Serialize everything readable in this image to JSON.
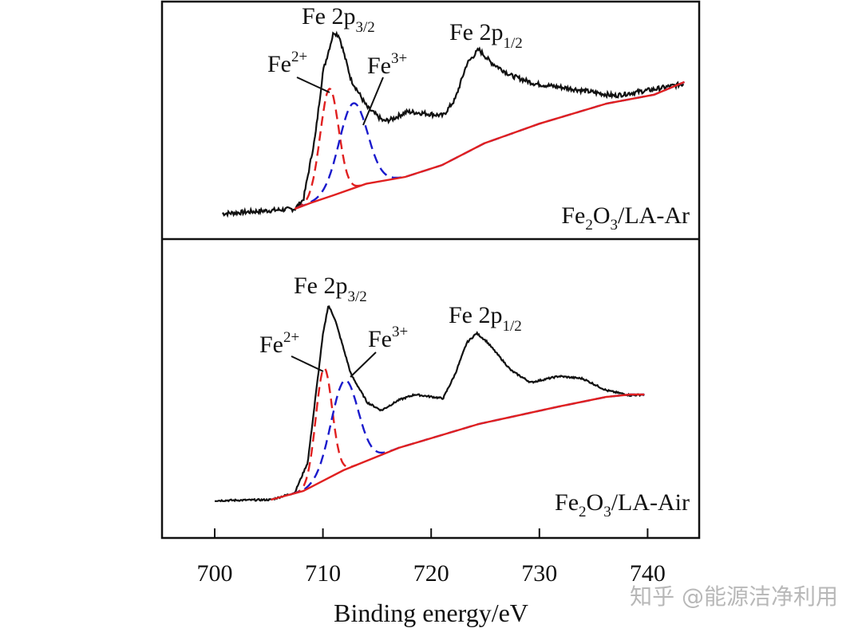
{
  "chart_data": {
    "type": "line",
    "xlabel": "Binding energy/eV",
    "xlim": [
      695,
      745
    ],
    "xticks": [
      700,
      710,
      720,
      730,
      740
    ],
    "ylabel": "",
    "y_units": "normalized intensity (arb.)",
    "colors": {
      "raw": "#111111",
      "fe2": "#e02020",
      "fe3": "#1a1acc",
      "baseline": "#e02020"
    },
    "panels": [
      {
        "sample": {
          "main": "Fe",
          "s1": "2",
          "mid": "O",
          "s2": "3",
          "rest": "/LA-Ar"
        },
        "peak_32": {
          "text": "Fe 2p",
          "sub": "3/2"
        },
        "peak_12": {
          "text": "Fe 2p",
          "sub": "1/2"
        },
        "fe2_label": {
          "text": "Fe",
          "sup": "2+"
        },
        "fe3_label": {
          "text": "Fe",
          "sup": "3+"
        },
        "raw": [
          [
            700.7,
            0.046
          ],
          [
            707.4,
            0.069
          ],
          [
            708.2,
            0.115
          ],
          [
            709.3,
            0.423
          ],
          [
            710.0,
            0.731
          ],
          [
            711.0,
            0.923
          ],
          [
            711.5,
            0.904
          ],
          [
            712.6,
            0.692
          ],
          [
            714.1,
            0.558
          ],
          [
            715.6,
            0.492
          ],
          [
            716.3,
            0.5
          ],
          [
            717.8,
            0.538
          ],
          [
            719.2,
            0.531
          ],
          [
            721.1,
            0.519
          ],
          [
            722.2,
            0.596
          ],
          [
            723.3,
            0.769
          ],
          [
            724.4,
            0.838
          ],
          [
            725.5,
            0.777
          ],
          [
            727.4,
            0.712
          ],
          [
            729.6,
            0.673
          ],
          [
            733.3,
            0.646
          ],
          [
            736.9,
            0.615
          ],
          [
            740.6,
            0.646
          ],
          [
            743.4,
            0.673
          ]
        ],
        "baseline": [
          [
            707.4,
            0.069
          ],
          [
            709.0,
            0.1
          ],
          [
            711.0,
            0.135
          ],
          [
            714.0,
            0.19
          ],
          [
            717.6,
            0.223
          ],
          [
            721.0,
            0.28
          ],
          [
            724.9,
            0.385
          ],
          [
            730.0,
            0.48
          ],
          [
            736.2,
            0.577
          ],
          [
            740.6,
            0.62
          ],
          [
            743.4,
            0.681
          ]
        ],
        "components": [
          {
            "name": "Fe2+",
            "center": 710.6,
            "height": 0.52,
            "sigma": 0.85
          },
          {
            "name": "Fe3+",
            "center": 712.8,
            "height": 0.41,
            "sigma": 1.3
          }
        ]
      },
      {
        "sample": {
          "main": "Fe",
          "s1": "2",
          "mid": "O",
          "s2": "3",
          "rest": "/LA-Air"
        },
        "peak_32": {
          "text": "Fe 2p",
          "sub": "3/2"
        },
        "peak_12": {
          "text": "Fe 2p",
          "sub": "1/2"
        },
        "fe2_label": {
          "text": "Fe",
          "sup": "2+"
        },
        "fe3_label": {
          "text": "Fe",
          "sup": "3+"
        },
        "raw": [
          [
            700.0,
            0.044
          ],
          [
            705.2,
            0.048
          ],
          [
            707.4,
            0.081
          ],
          [
            708.6,
            0.222
          ],
          [
            709.3,
            0.519
          ],
          [
            710.0,
            0.815
          ],
          [
            710.5,
            0.952
          ],
          [
            711.1,
            0.889
          ],
          [
            712.6,
            0.63
          ],
          [
            714.1,
            0.5
          ],
          [
            715.4,
            0.463
          ],
          [
            717.0,
            0.511
          ],
          [
            718.5,
            0.537
          ],
          [
            721.1,
            0.519
          ],
          [
            722.2,
            0.63
          ],
          [
            723.3,
            0.778
          ],
          [
            724.2,
            0.822
          ],
          [
            725.1,
            0.785
          ],
          [
            727.4,
            0.648
          ],
          [
            729.2,
            0.593
          ],
          [
            731.8,
            0.622
          ],
          [
            734.0,
            0.611
          ],
          [
            736.2,
            0.556
          ],
          [
            738.4,
            0.533
          ],
          [
            739.7,
            0.537
          ]
        ],
        "baseline": [
          [
            705.2,
            0.048
          ],
          [
            708.2,
            0.089
          ],
          [
            711.9,
            0.185
          ],
          [
            717.0,
            0.289
          ],
          [
            724.4,
            0.4
          ],
          [
            731.8,
            0.481
          ],
          [
            736.2,
            0.526
          ],
          [
            738.4,
            0.537
          ],
          [
            739.7,
            0.537
          ]
        ],
        "components": [
          {
            "name": "Fe2+",
            "center": 710.1,
            "height": 0.52,
            "sigma": 0.75
          },
          {
            "name": "Fe3+",
            "center": 712.0,
            "height": 0.415,
            "sigma": 1.25
          }
        ]
      }
    ]
  },
  "watermark": "知乎 @能源洁净利用"
}
